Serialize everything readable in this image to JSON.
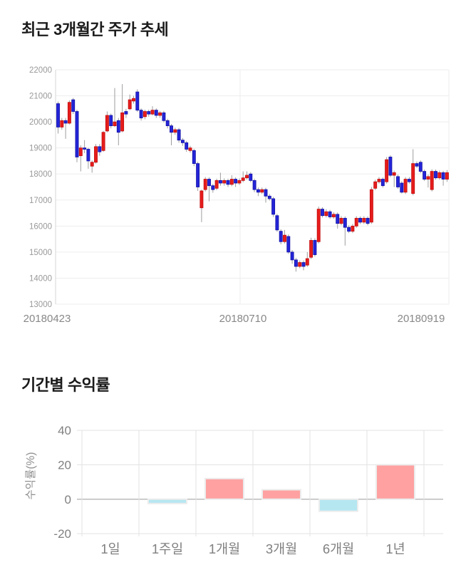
{
  "price_chart": {
    "title": "최근 3개월간 주가 추세"
  },
  "returns_chart": {
    "title": "기간별 수익률"
  },
  "chart_data": [
    {
      "type": "candlestick",
      "title": "최근 3개월간 주가 추세",
      "ylim": [
        13000,
        22000
      ],
      "y_ticks": [
        22000,
        21000,
        20000,
        19000,
        18000,
        17000,
        16000,
        15000,
        14000,
        13000
      ],
      "x_tick_labels": [
        "20180423",
        "20180710",
        "20180919"
      ],
      "grid_on": true,
      "up_color": "#e61c1c",
      "up_border": "#c40d0d",
      "down_color": "#2424d8",
      "down_border": "#1212a8",
      "wick_color": "#9e9e9e",
      "grid_color": "#ededed",
      "axis_color": "#d6d6d6",
      "tick_label_color": "#999999",
      "date_label_color": "#888888",
      "ohlc": [
        [
          20700,
          20780,
          19550,
          19800
        ],
        [
          19800,
          20150,
          19700,
          20050
        ],
        [
          20050,
          20150,
          19350,
          19950
        ],
        [
          19950,
          20830,
          19900,
          20750
        ],
        [
          20850,
          20920,
          20300,
          20400
        ],
        [
          20400,
          20470,
          18450,
          18650
        ],
        [
          18700,
          19100,
          18100,
          19000
        ],
        [
          19000,
          19300,
          18800,
          18950
        ],
        [
          18950,
          19000,
          18200,
          18500
        ],
        [
          18300,
          18520,
          18050,
          18450
        ],
        [
          18450,
          19150,
          18400,
          19050
        ],
        [
          19050,
          19150,
          18700,
          18850
        ],
        [
          18900,
          19650,
          18850,
          19600
        ],
        [
          19650,
          20400,
          19600,
          20250
        ],
        [
          20250,
          20320,
          19750,
          19850
        ],
        [
          19850,
          21300,
          19800,
          20000
        ],
        [
          20050,
          20150,
          19100,
          19600
        ],
        [
          19650,
          21450,
          19600,
          20350
        ],
        [
          20400,
          20500,
          20150,
          20300
        ],
        [
          20500,
          21050,
          20450,
          20850
        ],
        [
          20800,
          21000,
          20700,
          20900
        ],
        [
          21150,
          21250,
          20380,
          20450
        ],
        [
          20450,
          20520,
          20050,
          20150
        ],
        [
          20200,
          20470,
          20100,
          20400
        ],
        [
          20400,
          20470,
          20200,
          20300
        ],
        [
          20300,
          20600,
          20250,
          20450
        ],
        [
          20450,
          20520,
          20150,
          20250
        ],
        [
          20250,
          20420,
          20150,
          20350
        ],
        [
          20350,
          20420,
          19980,
          20050
        ],
        [
          20050,
          20120,
          19750,
          19850
        ],
        [
          19850,
          19920,
          19100,
          19600
        ],
        [
          19600,
          19780,
          19500,
          19700
        ],
        [
          19700,
          19770,
          19200,
          19300
        ],
        [
          19300,
          19380,
          19080,
          19200
        ],
        [
          19200,
          19270,
          18850,
          18950
        ],
        [
          18900,
          19080,
          18820,
          19000
        ],
        [
          18900,
          18970,
          18300,
          18400
        ],
        [
          18400,
          18470,
          17350,
          17500
        ],
        [
          16700,
          17400,
          16150,
          17350
        ],
        [
          17400,
          17880,
          17330,
          17800
        ],
        [
          17800,
          17870,
          16950,
          17550
        ],
        [
          17550,
          17620,
          17280,
          17400
        ],
        [
          17450,
          17820,
          17380,
          17750
        ],
        [
          17750,
          18050,
          17550,
          17650
        ],
        [
          17650,
          17830,
          17550,
          17750
        ],
        [
          17750,
          17820,
          17500,
          17600
        ],
        [
          17600,
          17950,
          17530,
          17800
        ],
        [
          17800,
          17870,
          17500,
          17650
        ],
        [
          17650,
          17830,
          17580,
          17750
        ],
        [
          17750,
          18100,
          17680,
          17850
        ],
        [
          17850,
          18100,
          17780,
          17950
        ],
        [
          18000,
          18070,
          17680,
          17750
        ],
        [
          17750,
          17820,
          17300,
          17400
        ],
        [
          17400,
          17480,
          17150,
          17300
        ],
        [
          17300,
          17480,
          17230,
          17400
        ],
        [
          17400,
          17470,
          16900,
          17150
        ],
        [
          17150,
          17230,
          16980,
          17050
        ],
        [
          17050,
          17120,
          16350,
          16450
        ],
        [
          16400,
          16470,
          15780,
          15850
        ],
        [
          15800,
          15880,
          15300,
          15400
        ],
        [
          15400,
          15850,
          15330,
          15650
        ],
        [
          15600,
          15680,
          14930,
          15000
        ],
        [
          15000,
          15080,
          14550,
          14700
        ],
        [
          14700,
          14780,
          14250,
          14450
        ],
        [
          14450,
          14680,
          14380,
          14600
        ],
        [
          14600,
          14680,
          14300,
          14450
        ],
        [
          14500,
          15000,
          14430,
          14750
        ],
        [
          14800,
          15550,
          14730,
          15450
        ],
        [
          15450,
          15530,
          14830,
          14900
        ],
        [
          15400,
          16750,
          15330,
          16650
        ],
        [
          16650,
          16720,
          16330,
          16400
        ],
        [
          16400,
          16650,
          16330,
          16550
        ],
        [
          16550,
          16620,
          16280,
          16350
        ],
        [
          16350,
          16530,
          16280,
          16450
        ],
        [
          16450,
          16520,
          15900,
          16100
        ],
        [
          16100,
          16380,
          16030,
          16300
        ],
        [
          16300,
          16370,
          15250,
          15950
        ],
        [
          15950,
          16030,
          15730,
          15800
        ],
        [
          15800,
          16080,
          15730,
          16000
        ],
        [
          16000,
          16380,
          15930,
          16300
        ],
        [
          16300,
          16370,
          16080,
          16150
        ],
        [
          16150,
          16380,
          16080,
          16300
        ],
        [
          16300,
          16370,
          16030,
          16100
        ],
        [
          16150,
          17500,
          16080,
          17400
        ],
        [
          17450,
          17780,
          17380,
          17700
        ],
        [
          17700,
          17880,
          17630,
          17800
        ],
        [
          17800,
          17870,
          17480,
          17550
        ],
        [
          17700,
          18650,
          17630,
          18550
        ],
        [
          18650,
          18720,
          17880,
          17950
        ],
        [
          17950,
          18130,
          17500,
          18050
        ],
        [
          17900,
          17980,
          17430,
          17500
        ],
        [
          17650,
          17720,
          17250,
          17300
        ],
        [
          17300,
          17880,
          17230,
          17800
        ],
        [
          17800,
          17880,
          17630,
          17700
        ],
        [
          17250,
          18950,
          17180,
          18400
        ],
        [
          18400,
          18480,
          18230,
          18300
        ],
        [
          18450,
          18520,
          18030,
          18100
        ],
        [
          18100,
          18170,
          17730,
          17800
        ],
        [
          17800,
          17980,
          17480,
          17900
        ],
        [
          17400,
          18180,
          17330,
          18100
        ],
        [
          18100,
          18170,
          17780,
          17850
        ],
        [
          17850,
          18130,
          17780,
          18050
        ],
        [
          18050,
          18120,
          17550,
          17800
        ],
        [
          17800,
          18150,
          17700,
          18050
        ]
      ]
    },
    {
      "type": "bar",
      "title": "기간별 수익률",
      "categories": [
        "1일",
        "1주일",
        "1개월",
        "3개월",
        "6개월",
        "1년"
      ],
      "values": [
        0,
        -2.5,
        12,
        5.5,
        -7,
        20
      ],
      "ylabel": "수익률(%)",
      "y_ticks": [
        40,
        20,
        0,
        -20
      ],
      "ylim": [
        -25,
        42
      ],
      "grid_on": true,
      "legend": "none",
      "positive_color": "#ffa1a1",
      "negative_color": "#b5e7f1",
      "bar_border_color": "#ececec",
      "zero_line_color": "#b5b5b5",
      "grid_color": "#e3e3e3",
      "tick_label_color": "#808080",
      "category_label_color": "#808080",
      "ylabel_color": "#909090"
    }
  ]
}
